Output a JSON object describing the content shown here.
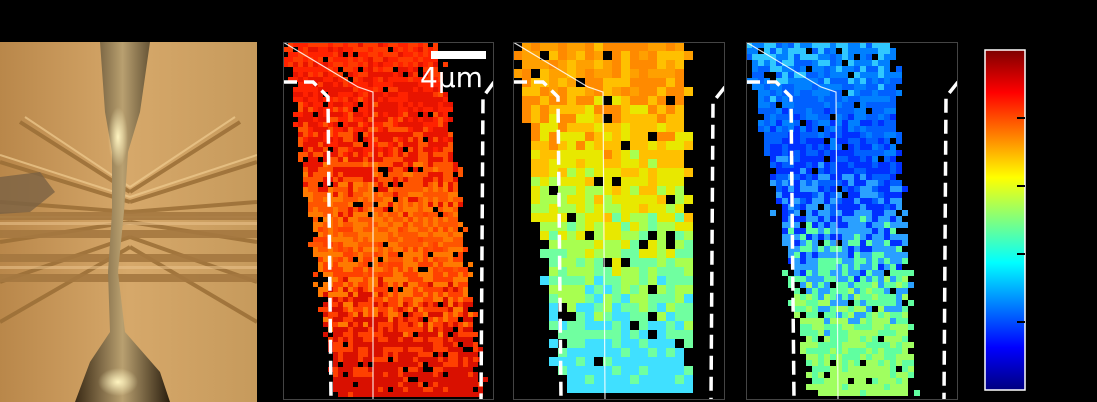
{
  "scale_bar": {
    "label": "4μm",
    "color": "#ffffff"
  },
  "colormap": {
    "name": "jet",
    "stops": [
      "#00007f",
      "#0000ff",
      "#007fff",
      "#00ffff",
      "#7fff7f",
      "#ffff00",
      "#ff7f00",
      "#ff0000",
      "#7f0000"
    ]
  },
  "colorbar": {
    "tick_count": 4,
    "tick_color": "#000000"
  },
  "maps": [
    {
      "palette": [
        "#ff3b00",
        "#ff2200",
        "#e81400",
        "#ff5500",
        "#ff7a00",
        "#ff4000",
        "#d91000"
      ]
    },
    {
      "palette": [
        "#ffa000",
        "#ff8a00",
        "#ffc000",
        "#e8e800",
        "#a8ff50",
        "#70ffa0",
        "#40e0ff"
      ]
    },
    {
      "palette": [
        "#30c8ff",
        "#0080ff",
        "#0060ff",
        "#0030ff",
        "#2aa0ff",
        "#60ffa0",
        "#a0ff60"
      ]
    }
  ],
  "outline": {
    "color": "#ffffff"
  }
}
